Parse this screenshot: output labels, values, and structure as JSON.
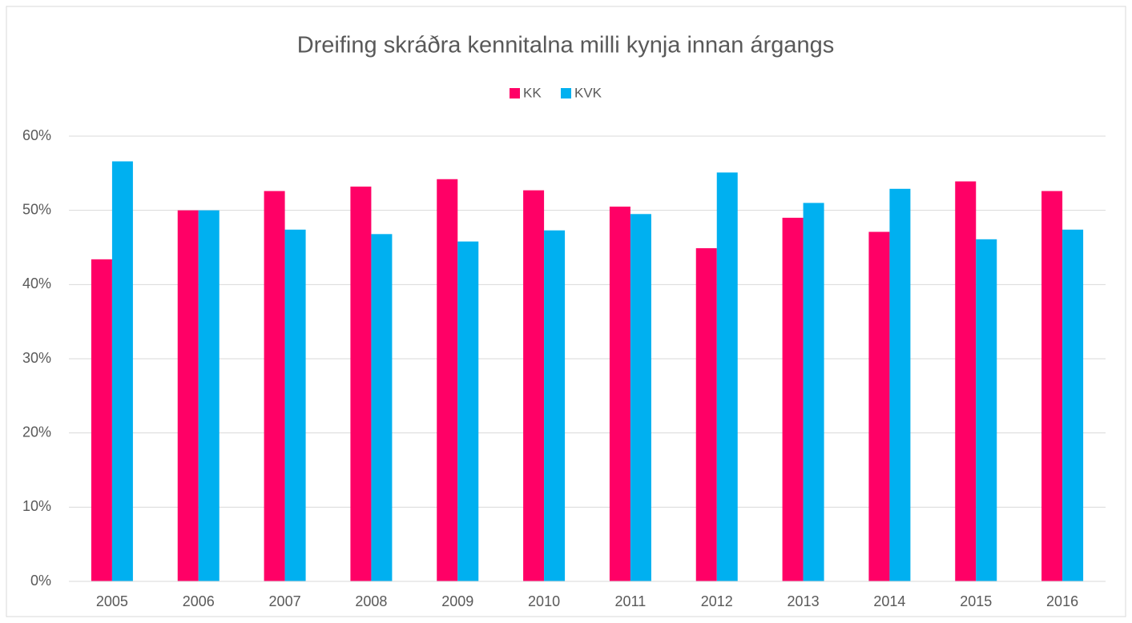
{
  "chart_data": {
    "type": "bar",
    "title": "Dreifing skráðra kennitalna milli kynja innan árgangs",
    "categories": [
      "2005",
      "2006",
      "2007",
      "2008",
      "2009",
      "2010",
      "2011",
      "2012",
      "2013",
      "2014",
      "2015",
      "2016"
    ],
    "series": [
      {
        "name": "KK",
        "color": "#ff0066",
        "values": [
          43.4,
          50.0,
          52.6,
          53.2,
          54.2,
          52.7,
          50.5,
          44.9,
          49.0,
          47.1,
          53.9,
          52.6
        ]
      },
      {
        "name": "KVK",
        "color": "#00b0f0",
        "values": [
          56.6,
          50.0,
          47.4,
          46.8,
          45.8,
          47.3,
          49.5,
          55.1,
          51.0,
          52.9,
          46.1,
          47.4
        ]
      }
    ],
    "ylim": [
      0,
      60
    ],
    "yticks": [
      {
        "value": 0,
        "label": "0%"
      },
      {
        "value": 10,
        "label": "10%"
      },
      {
        "value": 20,
        "label": "20%"
      },
      {
        "value": 30,
        "label": "30%"
      },
      {
        "value": 40,
        "label": "40%"
      },
      {
        "value": 50,
        "label": "50%"
      },
      {
        "value": 60,
        "label": "60%"
      }
    ],
    "grid": true,
    "legend": "top"
  }
}
